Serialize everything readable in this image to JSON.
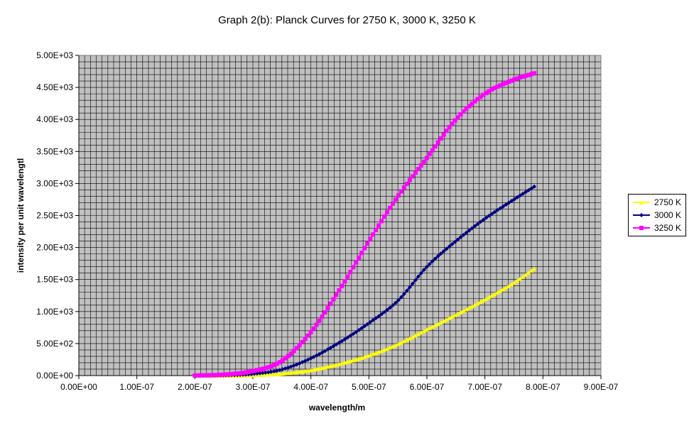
{
  "chart_data": {
    "type": "line",
    "title": "Graph 2(b): Planck Curves for 2750 K, 3000 K, 3250 K",
    "xlabel": "wavelength/m",
    "ylabel": "intensity per unit wavelengtl",
    "xlim": [
      0,
      9e-07
    ],
    "ylim": [
      0,
      5000
    ],
    "x_ticks": [
      "0.00E+00",
      "1.00E-07",
      "2.00E-07",
      "3.00E-07",
      "4.00E-07",
      "5.00E-07",
      "6.00E-07",
      "7.00E-07",
      "8.00E-07",
      "9.00E-07"
    ],
    "y_ticks": [
      "0.00E+00",
      "5.00E+02",
      "1.00E+03",
      "1.50E+03",
      "2.00E+03",
      "2.50E+03",
      "3.00E+03",
      "3.50E+03",
      "4.00E+03",
      "4.50E+03",
      "5.00E+03"
    ],
    "grid": true,
    "legend_position": "right",
    "plot_background": "#c0c0c0",
    "x": [
      2e-07,
      2.5e-07,
      3e-07,
      3.5e-07,
      4e-07,
      4.5e-07,
      5e-07,
      5.5e-07,
      6e-07,
      6.5e-07,
      7e-07,
      7.5e-07,
      7.85e-07
    ],
    "series": [
      {
        "name": "2750 K",
        "color": "#ffff00",
        "marker": "triangle",
        "values": [
          0.01,
          0.5,
          8,
          33,
          85,
          185,
          315,
          490,
          720,
          950,
          1190,
          1450,
          1670
        ]
      },
      {
        "name": "3000 K",
        "color": "#000080",
        "marker": "diamond",
        "values": [
          0.05,
          3,
          25,
          95,
          270,
          520,
          820,
          1170,
          1700,
          2100,
          2450,
          2750,
          2950
        ]
      },
      {
        "name": "3250 K",
        "color": "#ff00ff",
        "marker": "square",
        "values": [
          0.5,
          15,
          70,
          230,
          680,
          1350,
          2100,
          2800,
          3400,
          4000,
          4400,
          4620,
          4720
        ]
      }
    ]
  }
}
